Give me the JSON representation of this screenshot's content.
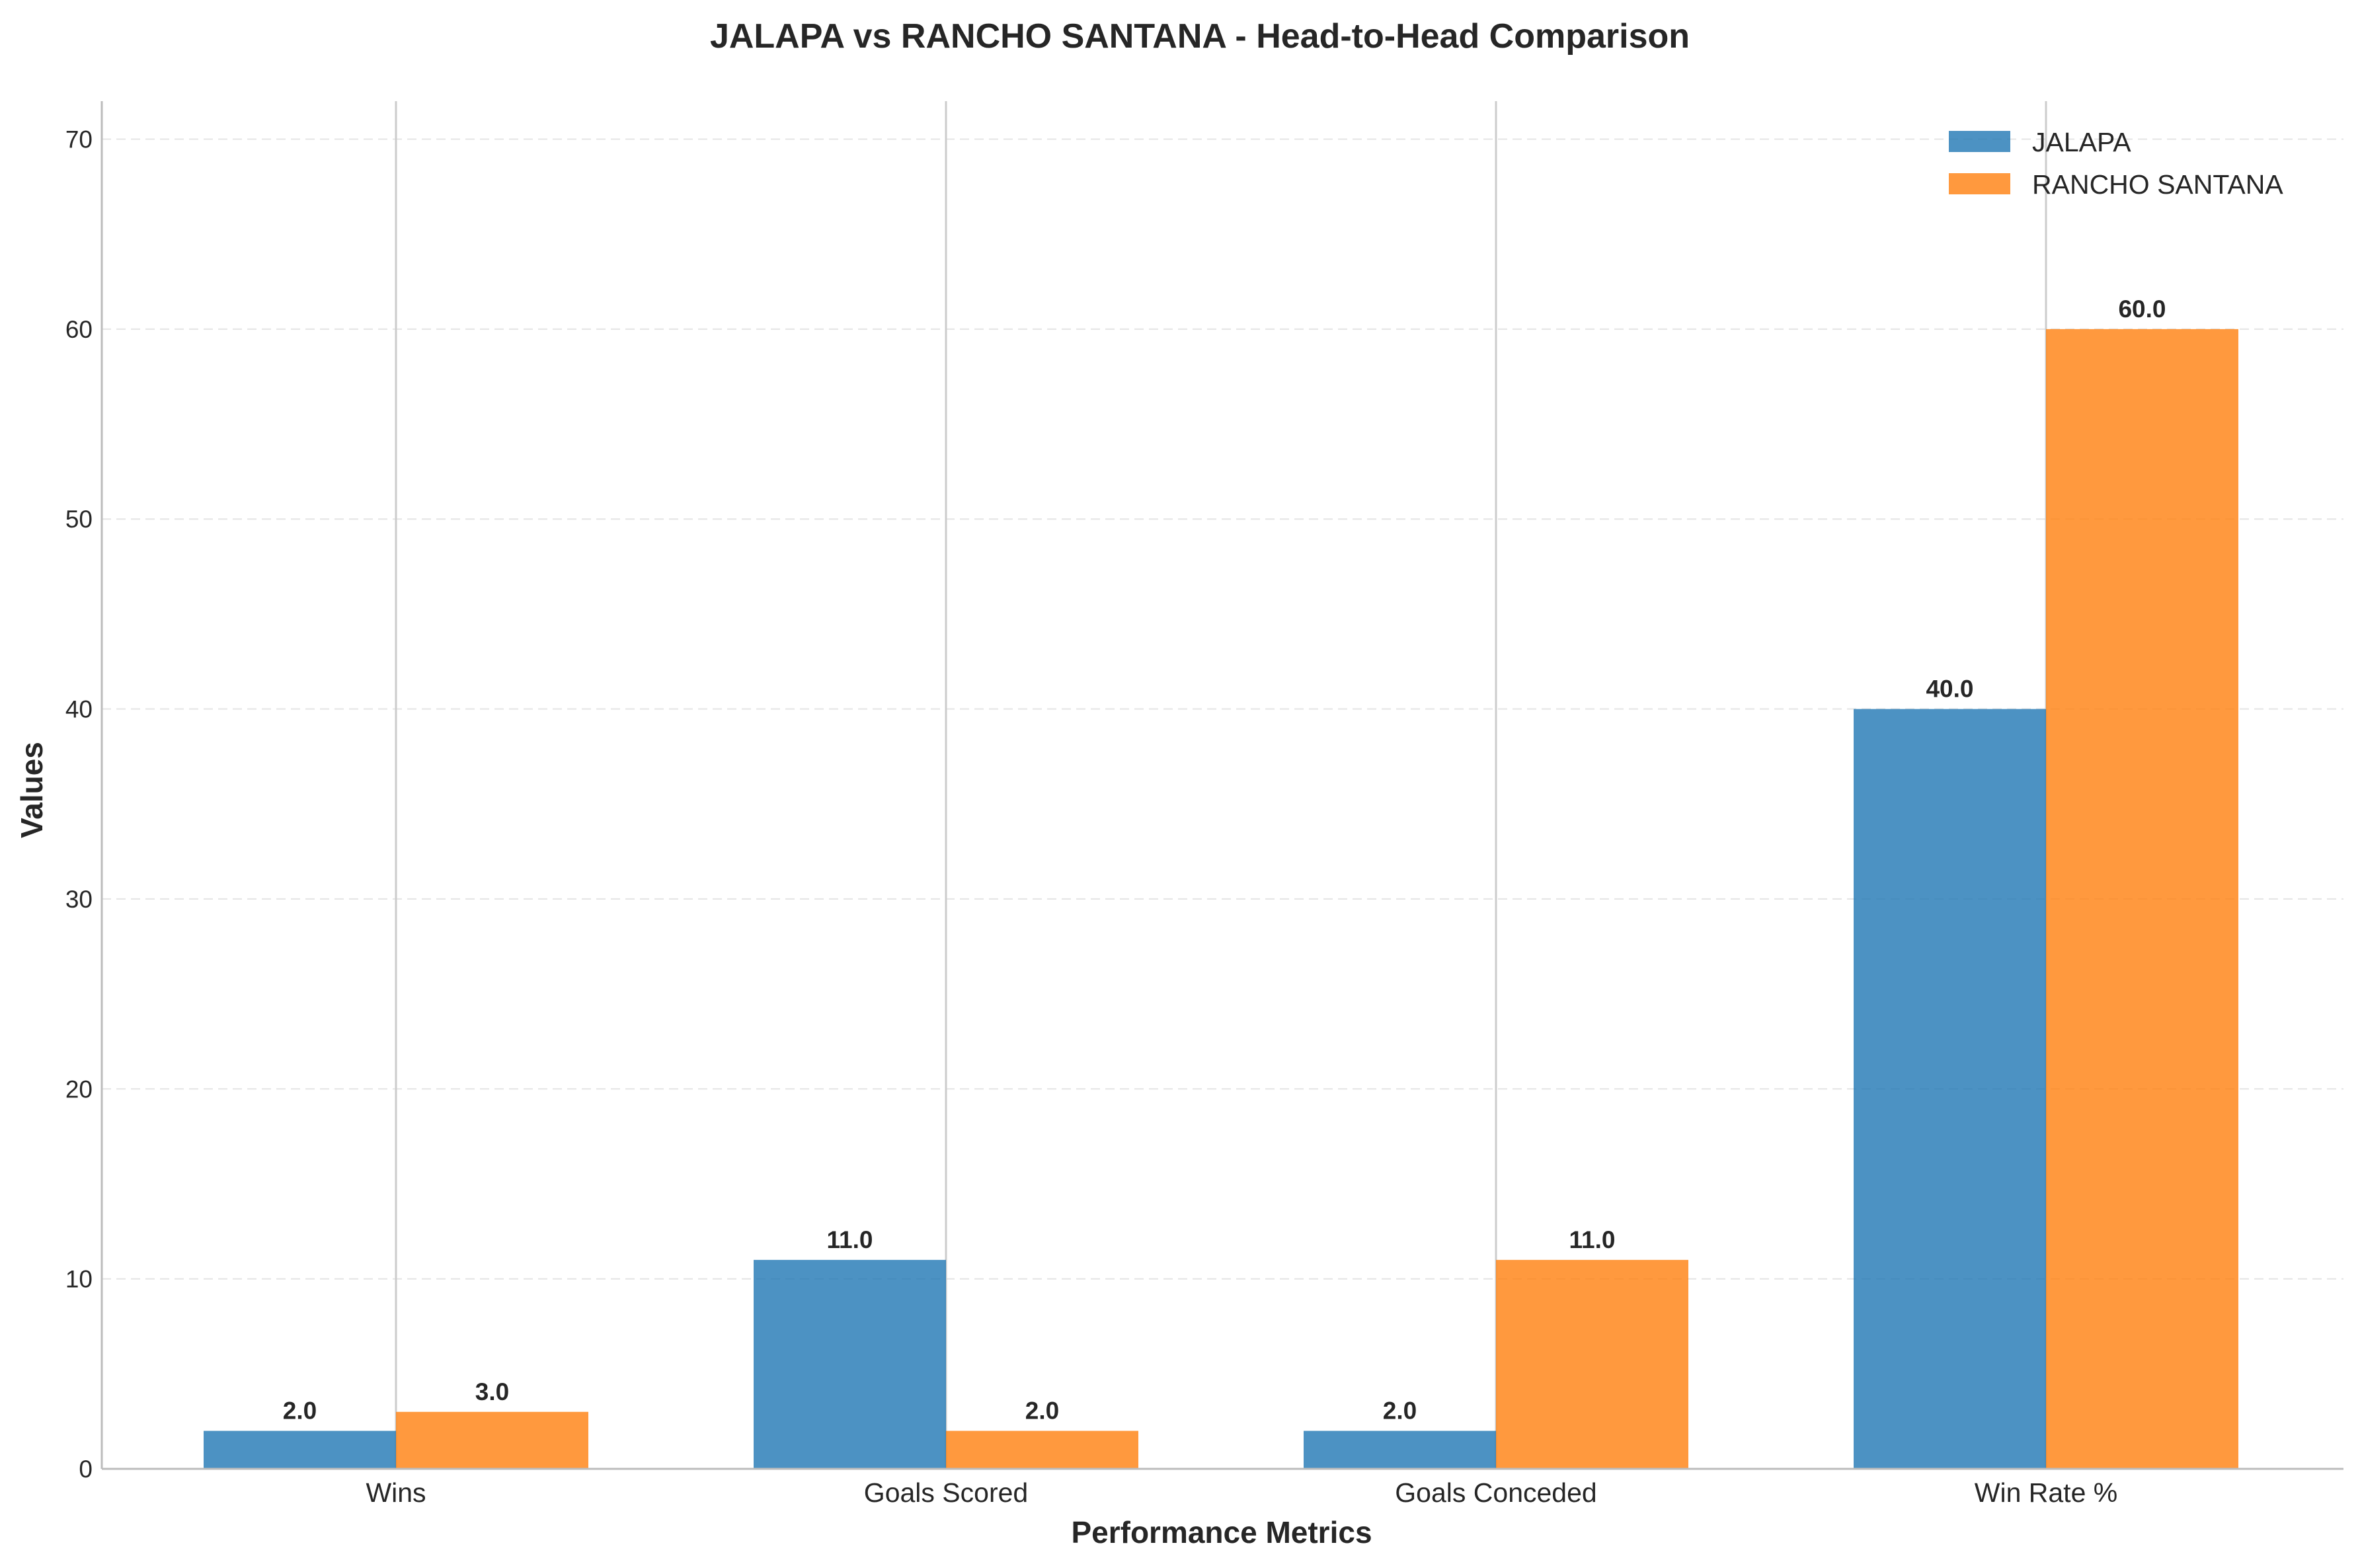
{
  "chart_data": {
    "type": "bar",
    "title": "JALAPA vs RANCHO SANTANA - Head-to-Head Comparison",
    "xlabel": "Performance Metrics",
    "ylabel": "Values",
    "categories": [
      "Wins",
      "Goals Scored",
      "Goals Conceded",
      "Win Rate %"
    ],
    "series": [
      {
        "name": "JALAPA",
        "values": [
          2.0,
          11.0,
          2.0,
          40.0
        ],
        "color": "#1f77b4",
        "labels": [
          "2.0",
          "11.0",
          "2.0",
          "40.0"
        ]
      },
      {
        "name": "RANCHO SANTANA",
        "values": [
          3.0,
          2.0,
          11.0,
          60.0
        ],
        "color": "#ff7f0e",
        "labels": [
          "3.0",
          "2.0",
          "11.0",
          "60.0"
        ]
      }
    ],
    "ylim": [
      0,
      72
    ],
    "yticks": [
      0,
      10,
      20,
      30,
      40,
      50,
      60,
      70
    ],
    "ytick_labels": [
      "0",
      "10",
      "20",
      "30",
      "40",
      "50",
      "60",
      "70"
    ],
    "grid": true,
    "legend_position": "top-right"
  }
}
